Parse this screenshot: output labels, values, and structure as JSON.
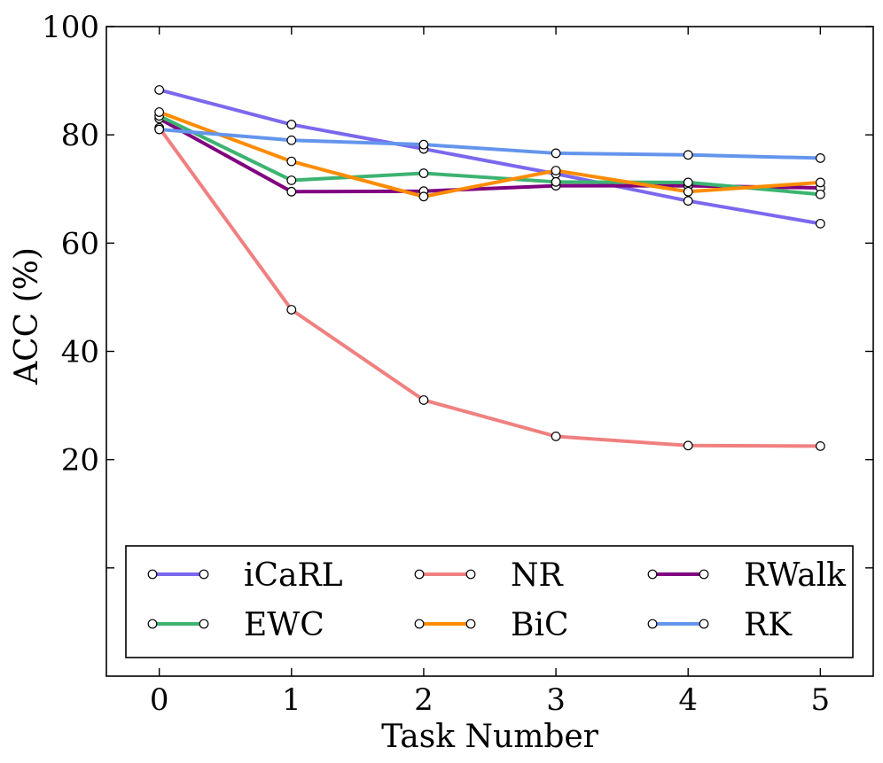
{
  "chart_data": {
    "type": "line",
    "title": "",
    "xlabel": "Task Number",
    "ylabel": "ACC (%)",
    "x": [
      0,
      1,
      2,
      3,
      4,
      5
    ],
    "xlim": [
      -0.4,
      5.4
    ],
    "ylim": [
      -20,
      100
    ],
    "yticks": [
      20,
      40,
      60,
      80,
      100
    ],
    "grid": false,
    "legend_position": "bottom",
    "legend_columns": 3,
    "series": [
      {
        "name": "iCaRL",
        "color": "#7B68EE",
        "values": [
          88.3,
          81.9,
          77.4,
          72.8,
          67.8,
          63.6
        ]
      },
      {
        "name": "NR",
        "color": "#F08080",
        "values": [
          81.3,
          47.7,
          31.0,
          24.3,
          22.6,
          22.5
        ]
      },
      {
        "name": "RWalk",
        "color": "#800080",
        "values": [
          83.0,
          69.5,
          69.6,
          70.6,
          70.6,
          70.2
        ]
      },
      {
        "name": "EWC",
        "color": "#3CB371",
        "values": [
          83.5,
          71.6,
          72.9,
          71.3,
          71.2,
          69.0
        ]
      },
      {
        "name": "BiC",
        "color": "#FF8C00",
        "values": [
          84.2,
          75.1,
          68.6,
          73.4,
          69.5,
          71.2
        ]
      },
      {
        "name": "RK",
        "color": "#6495ED",
        "values": [
          81.0,
          79.0,
          78.2,
          76.6,
          76.3,
          75.7
        ]
      }
    ]
  }
}
